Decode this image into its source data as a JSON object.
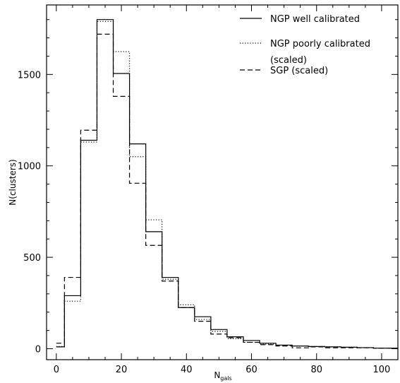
{
  "chart_data": {
    "type": "line",
    "title": "",
    "xlabel": "N",
    "xlabel_sub": "gals",
    "ylabel": "N(clusters)",
    "xlim": [
      -3,
      105
    ],
    "ylim": [
      -60,
      1880
    ],
    "xticks": [
      0,
      20,
      40,
      60,
      80,
      100
    ],
    "yticks": [
      0,
      500,
      1000,
      1500
    ],
    "grid": false,
    "legend_position": "top-right",
    "bin_edges": [
      0,
      2.5,
      7.5,
      12.5,
      17.5,
      22.5,
      27.5,
      32.5,
      37.5,
      42.5,
      47.5,
      52.5,
      57.5,
      62.5,
      67.5,
      72.5,
      77.5,
      82.5,
      87.5,
      92.5,
      97.5,
      105
    ],
    "series": [
      {
        "name": "NGP well calibrated",
        "style": "solid",
        "values": [
          10,
          290,
          1140,
          1800,
          1505,
          1120,
          640,
          390,
          225,
          175,
          105,
          65,
          45,
          30,
          20,
          15,
          12,
          10,
          8,
          6,
          3
        ]
      },
      {
        "name": "NGP poorly calibrated\n(scaled)",
        "style": "dotted",
        "values": [
          12,
          260,
          1130,
          1790,
          1625,
          1050,
          705,
          380,
          240,
          160,
          95,
          55,
          35,
          25,
          18,
          15,
          12,
          10,
          8,
          6,
          3
        ]
      },
      {
        "name": "SGP (scaled)",
        "style": "dashed",
        "values": [
          30,
          390,
          1195,
          1720,
          1380,
          905,
          565,
          370,
          225,
          150,
          80,
          60,
          35,
          22,
          15,
          5,
          10,
          5,
          5,
          5,
          3
        ]
      }
    ]
  }
}
